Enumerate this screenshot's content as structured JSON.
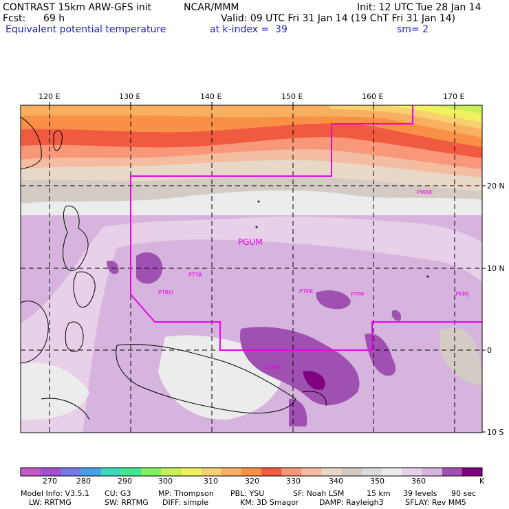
{
  "header": {
    "model_line": "CONTRAST 15km ARW-GFS init",
    "org": "NCAR/MMM",
    "init": "Init: 12 UTC Tue 28 Jan 14",
    "fcst_label": "Fcst:",
    "fcst_value": "69 h",
    "valid": "Valid: 09 UTC Fri 31 Jan 14 (19 ChT Fri 31 Jan 14)",
    "field": "Equivalent potential temperature",
    "level": "at k-index =  39",
    "smooth": "sm= 2"
  },
  "map": {
    "lon_labels": [
      "120 E",
      "130 E",
      "140 E",
      "150 E",
      "160 E",
      "170 E"
    ],
    "lat_labels": [
      "20 N",
      "10 N",
      "0",
      "10 S"
    ],
    "stations": [
      "PWAK",
      "PGUM",
      "PTYA",
      "PTRO",
      "PTKK",
      "PTPP",
      "PKMJ",
      "AYMH"
    ],
    "colors": {
      "t270": "#c45ac4",
      "t275": "#a050d0",
      "t280": "#7878e8",
      "t285": "#4aa0e8",
      "t290": "#3cd8c0",
      "t295": "#40e890",
      "t300": "#80f060",
      "t305": "#c8f058",
      "t310": "#f0f060",
      "t315": "#f8d070",
      "t320": "#f8b060",
      "t325": "#f89048",
      "t330": "#f05a40",
      "t335": "#f89878",
      "t340": "#f4bca0",
      "t345": "#e8d8c8",
      "t350": "#d4ccc4",
      "t355": "#dcdcdc",
      "t360": "#ececec",
      "t365": "#e8d0e8",
      "t370": "#d6b4de",
      "t375": "#a050b0",
      "t380": "#800080"
    }
  },
  "colorbar": {
    "labels": [
      "270",
      "280",
      "290",
      "300",
      "310",
      "320",
      "330",
      "340",
      "350",
      "360"
    ],
    "unit": "K"
  },
  "footer": {
    "line1": [
      "Model Info: V3.5.1",
      "CU: G3",
      "MP: Thompson",
      "PBL: YSU",
      "SF: Noah LSM",
      "15 km",
      "39 levels",
      "90 sec"
    ],
    "line2": [
      "LW: RRTMG",
      "SW: RRTMG",
      "DIFF: simple",
      "KM: 3D Smagor",
      "DAMP: Rayleigh3",
      "SFLAY: Rev MM5"
    ]
  }
}
